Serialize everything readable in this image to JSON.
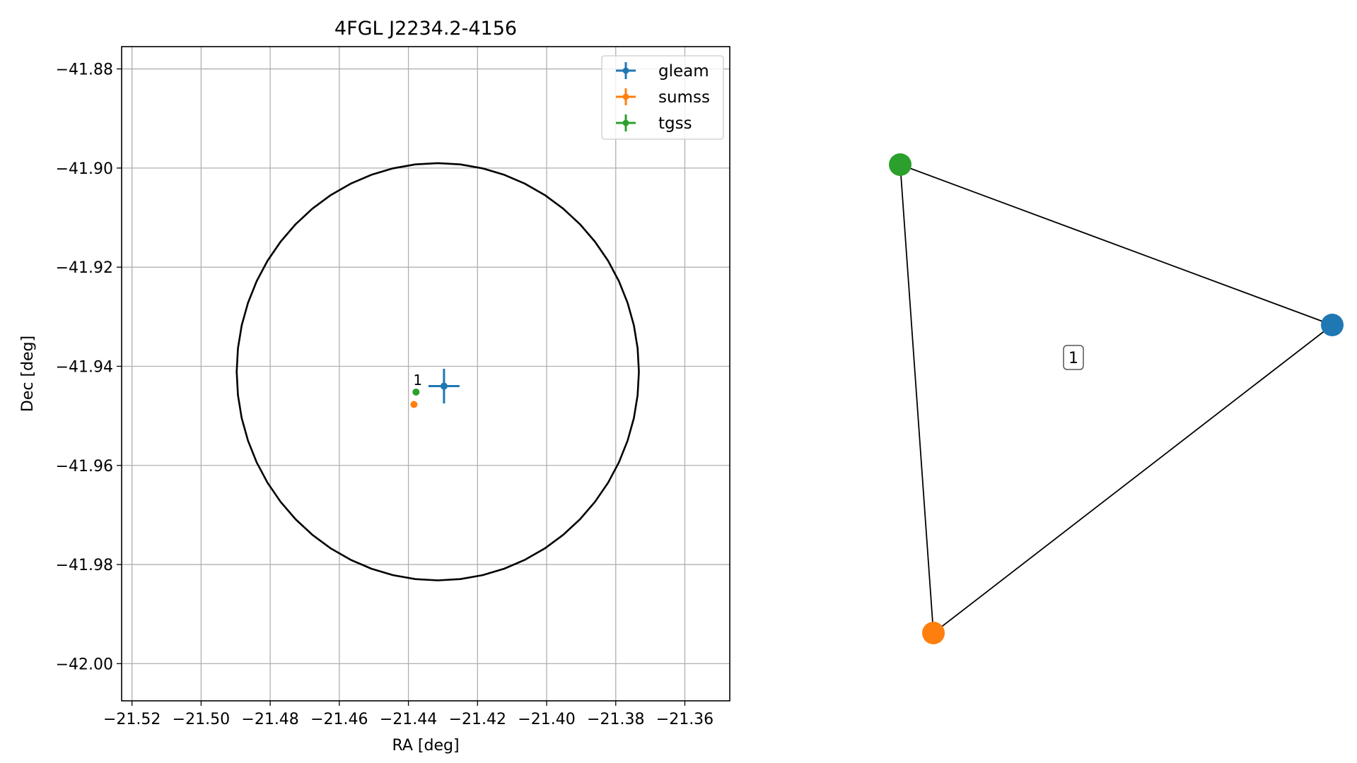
{
  "chart_data": [
    {
      "type": "scatter",
      "title": "4FGL J2234.2-4156",
      "xlabel": "RA [deg]",
      "ylabel": "Dec [deg]",
      "xlim": [
        -21.523,
        -21.347
      ],
      "ylim": [
        -42.0075,
        -41.8755
      ],
      "x_ticks": [
        -21.52,
        -21.5,
        -21.48,
        -21.46,
        -21.44,
        -21.42,
        -21.4,
        -21.38,
        -21.36
      ],
      "x_tick_labels": [
        "−21.52",
        "−21.50",
        "−21.48",
        "−21.46",
        "−21.44",
        "−21.42",
        "−21.40",
        "−21.38",
        "−21.36"
      ],
      "y_ticks": [
        -41.88,
        -41.9,
        -41.92,
        -41.94,
        -41.96,
        -41.98,
        -42.0
      ],
      "y_tick_labels": [
        "−41.88",
        "−41.90",
        "−41.92",
        "−41.94",
        "−41.96",
        "−41.98",
        "−42.00"
      ],
      "grid": true,
      "legend_position": "top-right",
      "ellipse": {
        "center_ra": -21.4315,
        "center_dec": -41.9411,
        "radius_ra": 0.0582,
        "radius_dec": 0.0421
      },
      "series": [
        {
          "name": "gleam",
          "color": "#1f77b4",
          "points": [
            {
              "x": -21.4297,
              "y": -41.944,
              "xerr": 0.0045,
              "yerr": 0.0035
            }
          ]
        },
        {
          "name": "sumss",
          "color": "#ff7f0e",
          "points": [
            {
              "x": -21.4384,
              "y": -41.9477,
              "xerr": 0,
              "yerr": 0
            }
          ]
        },
        {
          "name": "tgss",
          "color": "#2ca02c",
          "points": [
            {
              "x": -21.4378,
              "y": -41.9452,
              "xerr": 0,
              "yerr": 0
            }
          ]
        }
      ],
      "annotations": [
        {
          "text": "1",
          "x": -21.4373,
          "y": -41.9429
        }
      ]
    },
    {
      "type": "network",
      "nodes": [
        {
          "name": "gleam",
          "color": "#1f77b4"
        },
        {
          "name": "sumss",
          "color": "#ff7f0e"
        },
        {
          "name": "tgss",
          "color": "#2ca02c"
        }
      ],
      "edges": [
        [
          "gleam",
          "sumss"
        ],
        [
          "gleam",
          "tgss"
        ],
        [
          "sumss",
          "tgss"
        ]
      ],
      "label": "1"
    }
  ]
}
